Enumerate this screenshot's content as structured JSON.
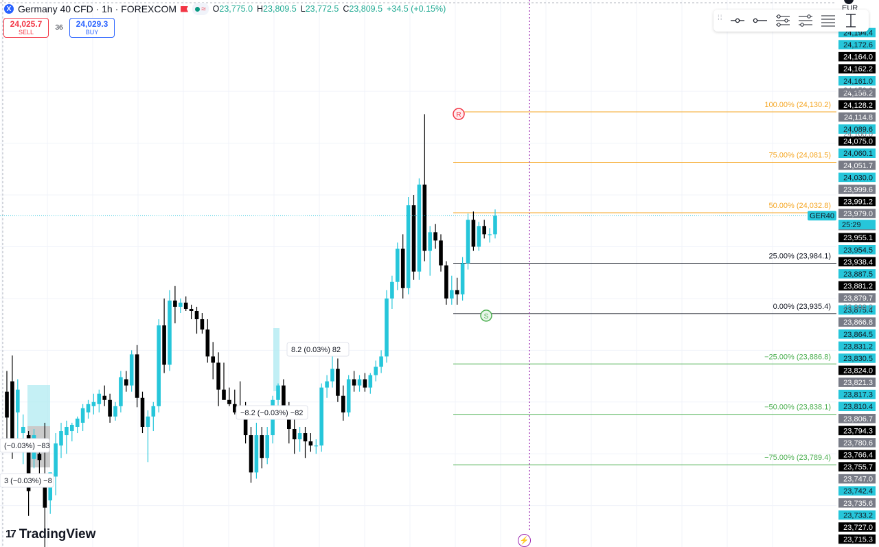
{
  "header": {
    "symbol_title": "Germany 40 CFD · 1h · FOREXCOM",
    "logo_letter": "X",
    "ohlc": [
      {
        "k": "O",
        "v": "23,775.0"
      },
      {
        "k": "H",
        "v": "23,809.5"
      },
      {
        "k": "L",
        "v": "23,772.5"
      },
      {
        "k": "C",
        "v": "23,809.5"
      }
    ],
    "change": "+34.5 (+0.15%)",
    "wave_glyph": "≈"
  },
  "trade": {
    "sell_price": "24,025.7",
    "sell_label": "SELL",
    "spread": "36",
    "buy_price": "24,029.3",
    "buy_label": "BUY"
  },
  "currency": "EUR",
  "branding": "TradingView",
  "colors": {
    "up": "#26c6da",
    "down": "#000000",
    "fib_top": "#f5a623",
    "fib_mid": "#131722",
    "fib_low": "#4caf50",
    "cursor": "#9c27b0",
    "ask_line": "#26c6da"
  },
  "price_axis": {
    "min": 23710,
    "max": 24225,
    "badges": [
      {
        "v": "24,194.4",
        "c": "up"
      },
      {
        "v": "24,172.6",
        "c": "up"
      },
      {
        "v": "24,164.0",
        "c": "down"
      },
      {
        "v": "24,162.2",
        "c": "down"
      },
      {
        "v": "24,161.0",
        "c": "up"
      },
      {
        "v": "24,158.2",
        "c": "gray"
      },
      {
        "v": "24,128.2",
        "c": "down"
      },
      {
        "v": "24,114.8",
        "c": "gray"
      },
      {
        "v": "24,089.6",
        "c": "up"
      },
      {
        "v": "24,075.0",
        "c": "down"
      },
      {
        "v": "24,060.1",
        "c": "up"
      },
      {
        "v": "24,051.7",
        "c": "gray"
      },
      {
        "v": "24,030.0",
        "c": "up"
      },
      {
        "v": "23,999.6",
        "c": "gray"
      },
      {
        "v": "23,991.2",
        "c": "down"
      },
      {
        "v": "23,979.0",
        "c": "gray"
      },
      {
        "v": "23,974.4",
        "c": "gray"
      },
      {
        "v": "23,955.1",
        "c": "down"
      },
      {
        "v": "23,954.5",
        "c": "up"
      },
      {
        "v": "23,938.4",
        "c": "down"
      },
      {
        "v": "23,887.5",
        "c": "up"
      },
      {
        "v": "23,881.2",
        "c": "down"
      },
      {
        "v": "23,879.7",
        "c": "gray"
      },
      {
        "v": "23,875.4",
        "c": "up"
      },
      {
        "v": "23,866.8",
        "c": "gray"
      },
      {
        "v": "23,864.5",
        "c": "up"
      },
      {
        "v": "23,831.2",
        "c": "up"
      },
      {
        "v": "23,830.5",
        "c": "up"
      },
      {
        "v": "23,824.0",
        "c": "down"
      },
      {
        "v": "23,821.3",
        "c": "gray"
      },
      {
        "v": "23,817.3",
        "c": "up"
      },
      {
        "v": "23,810.4",
        "c": "up"
      },
      {
        "v": "23,806.7",
        "c": "gray"
      },
      {
        "v": "23,794.3",
        "c": "down"
      },
      {
        "v": "23,780.6",
        "c": "gray"
      },
      {
        "v": "23,766.4",
        "c": "down"
      },
      {
        "v": "23,755.7",
        "c": "down"
      },
      {
        "v": "23,747.0",
        "c": "gray"
      },
      {
        "v": "23,742.4",
        "c": "up"
      },
      {
        "v": "23,735.6",
        "c": "gray"
      },
      {
        "v": "23,733.2",
        "c": "up"
      },
      {
        "v": "23,727.0",
        "c": "down"
      },
      {
        "v": "23,715.3",
        "c": "down"
      }
    ],
    "plain_ticks": [
      "24,150.0",
      "24,100.0",
      "23,900.0"
    ],
    "symbol_tag": "GER40",
    "countdown": "25:29",
    "current_price": 24030.0
  },
  "fib_levels": [
    {
      "label": "100.00% (24,130.2)",
      "price": 24130.2,
      "group": "top"
    },
    {
      "label": "75.00% (24,081.5)",
      "price": 24081.5,
      "group": "top"
    },
    {
      "label": "50.00% (24,032.8)",
      "price": 24032.8,
      "group": "top"
    },
    {
      "label": "25.00% (23,984.1)",
      "price": 23984.1,
      "group": "mid"
    },
    {
      "label": "0.00% (23,935.4)",
      "price": 23935.4,
      "group": "mid"
    },
    {
      "label": "−25.00% (23,886.8)",
      "price": 23886.8,
      "group": "low"
    },
    {
      "label": "−50.00% (23,838.1)",
      "price": 23838.1,
      "group": "low"
    },
    {
      "label": "−75.00% (23,789.4)",
      "price": 23789.4,
      "group": "low"
    }
  ],
  "markers": {
    "resistance_letter": "R",
    "support_letter": "S",
    "bolt": "⚡"
  },
  "measure_labels": [
    {
      "text": "8.2 (0.03%) 82"
    },
    {
      "text": "−8.2 (−0.03%) −82"
    },
    {
      "text": "(−0.03%) −83"
    },
    {
      "text": "3 (−0.03%) −8"
    }
  ],
  "chart_data": {
    "type": "candlestick",
    "interval": "1h",
    "title": "Germany 40 CFD · 1h · FOREXCOM",
    "ylim": [
      23710,
      24225
    ],
    "candles": [
      {
        "o": 23860,
        "h": 23880,
        "l": 23815,
        "c": 23835
      },
      {
        "o": 23870,
        "h": 23895,
        "l": 23795,
        "c": 23805
      },
      {
        "o": 23840,
        "h": 23872,
        "l": 23812,
        "c": 23862
      },
      {
        "o": 23820,
        "h": 23838,
        "l": 23790,
        "c": 23826
      },
      {
        "o": 23818,
        "h": 23822,
        "l": 23740,
        "c": 23764
      },
      {
        "o": 23795,
        "h": 23824,
        "l": 23786,
        "c": 23818
      },
      {
        "o": 23800,
        "h": 23812,
        "l": 23776,
        "c": 23794
      },
      {
        "o": 23770,
        "h": 23830,
        "l": 23710,
        "c": 23748
      },
      {
        "o": 23755,
        "h": 23782,
        "l": 23742,
        "c": 23782
      },
      {
        "o": 23778,
        "h": 23820,
        "l": 23760,
        "c": 23810
      },
      {
        "o": 23808,
        "h": 23830,
        "l": 23796,
        "c": 23822
      },
      {
        "o": 23818,
        "h": 23832,
        "l": 23800,
        "c": 23826
      },
      {
        "o": 23822,
        "h": 23830,
        "l": 23812,
        "c": 23828
      },
      {
        "o": 23826,
        "h": 23836,
        "l": 23820,
        "c": 23834
      },
      {
        "o": 23830,
        "h": 23848,
        "l": 23822,
        "c": 23844
      },
      {
        "o": 23840,
        "h": 23852,
        "l": 23834,
        "c": 23848
      },
      {
        "o": 23846,
        "h": 23858,
        "l": 23838,
        "c": 23850
      },
      {
        "o": 23848,
        "h": 23862,
        "l": 23840,
        "c": 23858
      },
      {
        "o": 23856,
        "h": 23866,
        "l": 23846,
        "c": 23852
      },
      {
        "o": 23852,
        "h": 23858,
        "l": 23830,
        "c": 23836
      },
      {
        "o": 23836,
        "h": 23850,
        "l": 23832,
        "c": 23846
      },
      {
        "o": 23846,
        "h": 23880,
        "l": 23840,
        "c": 23874
      },
      {
        "o": 23872,
        "h": 23880,
        "l": 23860,
        "c": 23866
      },
      {
        "o": 23866,
        "h": 23900,
        "l": 23860,
        "c": 23896
      },
      {
        "o": 23896,
        "h": 23905,
        "l": 23845,
        "c": 23854
      },
      {
        "o": 23854,
        "h": 23860,
        "l": 23820,
        "c": 23826
      },
      {
        "o": 23826,
        "h": 23842,
        "l": 23792,
        "c": 23836
      },
      {
        "o": 23836,
        "h": 23850,
        "l": 23822,
        "c": 23846
      },
      {
        "o": 23846,
        "h": 23930,
        "l": 23840,
        "c": 23924
      },
      {
        "o": 23924,
        "h": 23950,
        "l": 23878,
        "c": 23886
      },
      {
        "o": 23886,
        "h": 23958,
        "l": 23880,
        "c": 23948
      },
      {
        "o": 23948,
        "h": 23962,
        "l": 23926,
        "c": 23942
      },
      {
        "o": 23942,
        "h": 23950,
        "l": 23936,
        "c": 23946
      },
      {
        "o": 23946,
        "h": 23952,
        "l": 23938,
        "c": 23940
      },
      {
        "o": 23940,
        "h": 23944,
        "l": 23930,
        "c": 23938
      },
      {
        "o": 23938,
        "h": 23942,
        "l": 23916,
        "c": 23930
      },
      {
        "o": 23930,
        "h": 23936,
        "l": 23916,
        "c": 23920
      },
      {
        "o": 23920,
        "h": 23930,
        "l": 23888,
        "c": 23894
      },
      {
        "o": 23894,
        "h": 23908,
        "l": 23872,
        "c": 23888
      },
      {
        "o": 23888,
        "h": 23898,
        "l": 23846,
        "c": 23862
      },
      {
        "o": 23862,
        "h": 23888,
        "l": 23854,
        "c": 23852
      },
      {
        "o": 23852,
        "h": 23864,
        "l": 23846,
        "c": 23848
      },
      {
        "o": 23848,
        "h": 23862,
        "l": 23838,
        "c": 23840
      },
      {
        "o": 23842,
        "h": 23870,
        "l": 23838,
        "c": 23834
      },
      {
        "o": 23834,
        "h": 23850,
        "l": 23810,
        "c": 23818
      },
      {
        "o": 23818,
        "h": 23826,
        "l": 23772,
        "c": 23782
      },
      {
        "o": 23782,
        "h": 23830,
        "l": 23776,
        "c": 23818
      },
      {
        "o": 23818,
        "h": 23826,
        "l": 23786,
        "c": 23796
      },
      {
        "o": 23796,
        "h": 23826,
        "l": 23790,
        "c": 23818
      },
      {
        "o": 23818,
        "h": 23856,
        "l": 23810,
        "c": 23852
      },
      {
        "o": 23852,
        "h": 23868,
        "l": 23836,
        "c": 23866
      },
      {
        "o": 23866,
        "h": 23872,
        "l": 23838,
        "c": 23842
      },
      {
        "o": 23842,
        "h": 23850,
        "l": 23810,
        "c": 23824
      },
      {
        "o": 23824,
        "h": 23834,
        "l": 23800,
        "c": 23814
      },
      {
        "o": 23814,
        "h": 23826,
        "l": 23802,
        "c": 23820
      },
      {
        "o": 23820,
        "h": 23826,
        "l": 23796,
        "c": 23812
      },
      {
        "o": 23812,
        "h": 23820,
        "l": 23802,
        "c": 23808
      },
      {
        "o": 23808,
        "h": 23814,
        "l": 23800,
        "c": 23808
      },
      {
        "o": 23808,
        "h": 23868,
        "l": 23802,
        "c": 23864
      },
      {
        "o": 23864,
        "h": 23876,
        "l": 23854,
        "c": 23870
      },
      {
        "o": 23870,
        "h": 23894,
        "l": 23864,
        "c": 23882
      },
      {
        "o": 23882,
        "h": 23892,
        "l": 23850,
        "c": 23856
      },
      {
        "o": 23856,
        "h": 23866,
        "l": 23832,
        "c": 23840
      },
      {
        "o": 23840,
        "h": 23876,
        "l": 23836,
        "c": 23872
      },
      {
        "o": 23872,
        "h": 23880,
        "l": 23860,
        "c": 23866
      },
      {
        "o": 23866,
        "h": 23876,
        "l": 23860,
        "c": 23872
      },
      {
        "o": 23872,
        "h": 23878,
        "l": 23860,
        "c": 23864
      },
      {
        "o": 23864,
        "h": 23878,
        "l": 23858,
        "c": 23876
      },
      {
        "o": 23876,
        "h": 23890,
        "l": 23870,
        "c": 23884
      },
      {
        "o": 23884,
        "h": 23900,
        "l": 23878,
        "c": 23894
      },
      {
        "o": 23894,
        "h": 23958,
        "l": 23888,
        "c": 23950
      },
      {
        "o": 23950,
        "h": 23972,
        "l": 23940,
        "c": 23966
      },
      {
        "o": 23966,
        "h": 24004,
        "l": 23958,
        "c": 23998
      },
      {
        "o": 23998,
        "h": 24012,
        "l": 23950,
        "c": 23960
      },
      {
        "o": 23960,
        "h": 24048,
        "l": 23954,
        "c": 24040
      },
      {
        "o": 24040,
        "h": 24050,
        "l": 23968,
        "c": 23976
      },
      {
        "o": 23976,
        "h": 24066,
        "l": 23968,
        "c": 24060
      },
      {
        "o": 24060,
        "h": 24128,
        "l": 23986,
        "c": 23996
      },
      {
        "o": 23996,
        "h": 24020,
        "l": 23972,
        "c": 24014
      },
      {
        "o": 24014,
        "h": 24022,
        "l": 23998,
        "c": 24006
      },
      {
        "o": 24006,
        "h": 24012,
        "l": 23976,
        "c": 23982
      },
      {
        "o": 23982,
        "h": 23986,
        "l": 23944,
        "c": 23950
      },
      {
        "o": 23950,
        "h": 23972,
        "l": 23944,
        "c": 23958
      },
      {
        "o": 23958,
        "h": 23970,
        "l": 23944,
        "c": 23954
      },
      {
        "o": 23954,
        "h": 23990,
        "l": 23948,
        "c": 23984
      },
      {
        "o": 23984,
        "h": 24032,
        "l": 23978,
        "c": 24026
      },
      {
        "o": 24026,
        "h": 24034,
        "l": 23996,
        "c": 24000
      },
      {
        "o": 24000,
        "h": 24024,
        "l": 23996,
        "c": 24020
      },
      {
        "o": 24020,
        "h": 24026,
        "l": 24008,
        "c": 24012
      },
      {
        "o": 24012,
        "h": 24018,
        "l": 24004,
        "c": 24012
      },
      {
        "o": 24012,
        "h": 24036,
        "l": 24008,
        "c": 24030
      }
    ]
  }
}
